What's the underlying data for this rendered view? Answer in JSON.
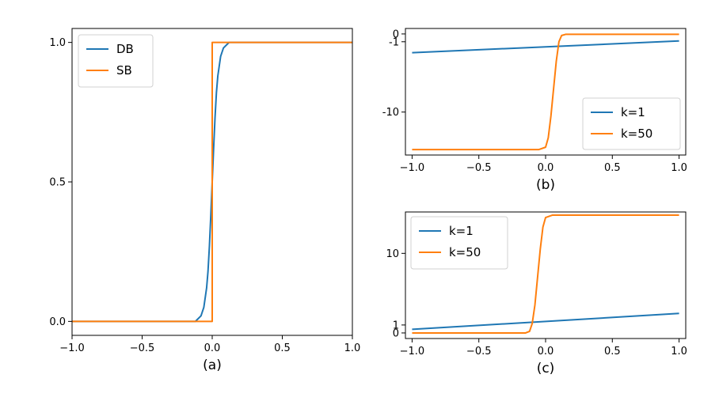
{
  "chart_data": [
    {
      "type": "line",
      "panel": "(a)",
      "xlim": [
        -1.0,
        1.0
      ],
      "ylim": [
        -0.05,
        1.05
      ],
      "xticks": [
        -1.0,
        -0.5,
        0.0,
        0.5,
        1.0
      ],
      "xtick_labels": [
        "−1.0",
        "−0.5",
        "0.0",
        "0.5",
        "1.0"
      ],
      "yticks": [
        0.0,
        0.5,
        1.0
      ],
      "ytick_labels": [
        "0.0",
        "0.5",
        "1.0"
      ],
      "xlabel": "(a)",
      "legend_loc": "upper-left",
      "series": [
        {
          "name": "DB",
          "color": "#1f77b4",
          "x": [
            -1.0,
            -0.12,
            -0.08,
            -0.06,
            -0.04,
            -0.03,
            -0.02,
            -0.01,
            0.0,
            0.01,
            0.02,
            0.03,
            0.04,
            0.06,
            0.08,
            0.12,
            1.0
          ],
          "y": [
            0.0,
            0.0,
            0.02,
            0.05,
            0.12,
            0.18,
            0.27,
            0.38,
            0.5,
            0.62,
            0.73,
            0.82,
            0.88,
            0.95,
            0.98,
            1.0,
            1.0
          ]
        },
        {
          "name": "SB",
          "color": "#ff7f0e",
          "x": [
            -1.0,
            0.0,
            0.0,
            1.0
          ],
          "y": [
            0.0,
            0.0,
            1.0,
            1.0
          ]
        }
      ]
    },
    {
      "type": "line",
      "panel": "(b)",
      "xlim": [
        -1.05,
        1.05
      ],
      "ylim": [
        -15.5,
        0.7
      ],
      "xticks": [
        -1.0,
        -0.5,
        0.0,
        0.5,
        1.0
      ],
      "xtick_labels": [
        "−1.0",
        "−0.5",
        "0.0",
        "0.5",
        "1.0"
      ],
      "yticks": [
        0,
        -1,
        -10
      ],
      "ytick_labels": [
        "0",
        "-1",
        "-10"
      ],
      "xlabel": "(b)",
      "legend_loc": "lower-right",
      "series": [
        {
          "name": "k=1",
          "color": "#1f77b4",
          "x": [
            -1.0,
            1.0
          ],
          "y": [
            -2.4,
            -0.9
          ]
        },
        {
          "name": "k=50",
          "color": "#ff7f0e",
          "x": [
            -1.0,
            -0.05,
            0.0,
            0.02,
            0.04,
            0.06,
            0.08,
            0.1,
            0.12,
            0.15,
            1.0
          ],
          "y": [
            -14.8,
            -14.8,
            -14.5,
            -13.3,
            -10.5,
            -7.0,
            -3.5,
            -1.0,
            -0.2,
            -0.05,
            -0.05
          ]
        }
      ]
    },
    {
      "type": "line",
      "panel": "(c)",
      "xlim": [
        -1.05,
        1.05
      ],
      "ylim": [
        -0.7,
        15.2
      ],
      "xticks": [
        -1.0,
        -0.5,
        0.0,
        0.5,
        1.0
      ],
      "xtick_labels": [
        "−1.0",
        "−0.5",
        "0.0",
        "0.5",
        "1.0"
      ],
      "yticks": [
        0,
        1,
        10
      ],
      "ytick_labels": [
        "0",
        "1",
        "10"
      ],
      "xlabel": "(c)",
      "legend_loc": "upper-left",
      "series": [
        {
          "name": "k=1",
          "color": "#1f77b4",
          "x": [
            -1.0,
            1.0
          ],
          "y": [
            0.45,
            2.45
          ]
        },
        {
          "name": "k=50",
          "color": "#ff7f0e",
          "x": [
            -1.0,
            -0.15,
            -0.12,
            -0.1,
            -0.08,
            -0.06,
            -0.04,
            -0.02,
            0.0,
            0.05,
            1.0
          ],
          "y": [
            0.0,
            0.0,
            0.2,
            1.2,
            3.5,
            7.0,
            10.5,
            13.3,
            14.5,
            14.8,
            14.8
          ]
        }
      ]
    }
  ]
}
